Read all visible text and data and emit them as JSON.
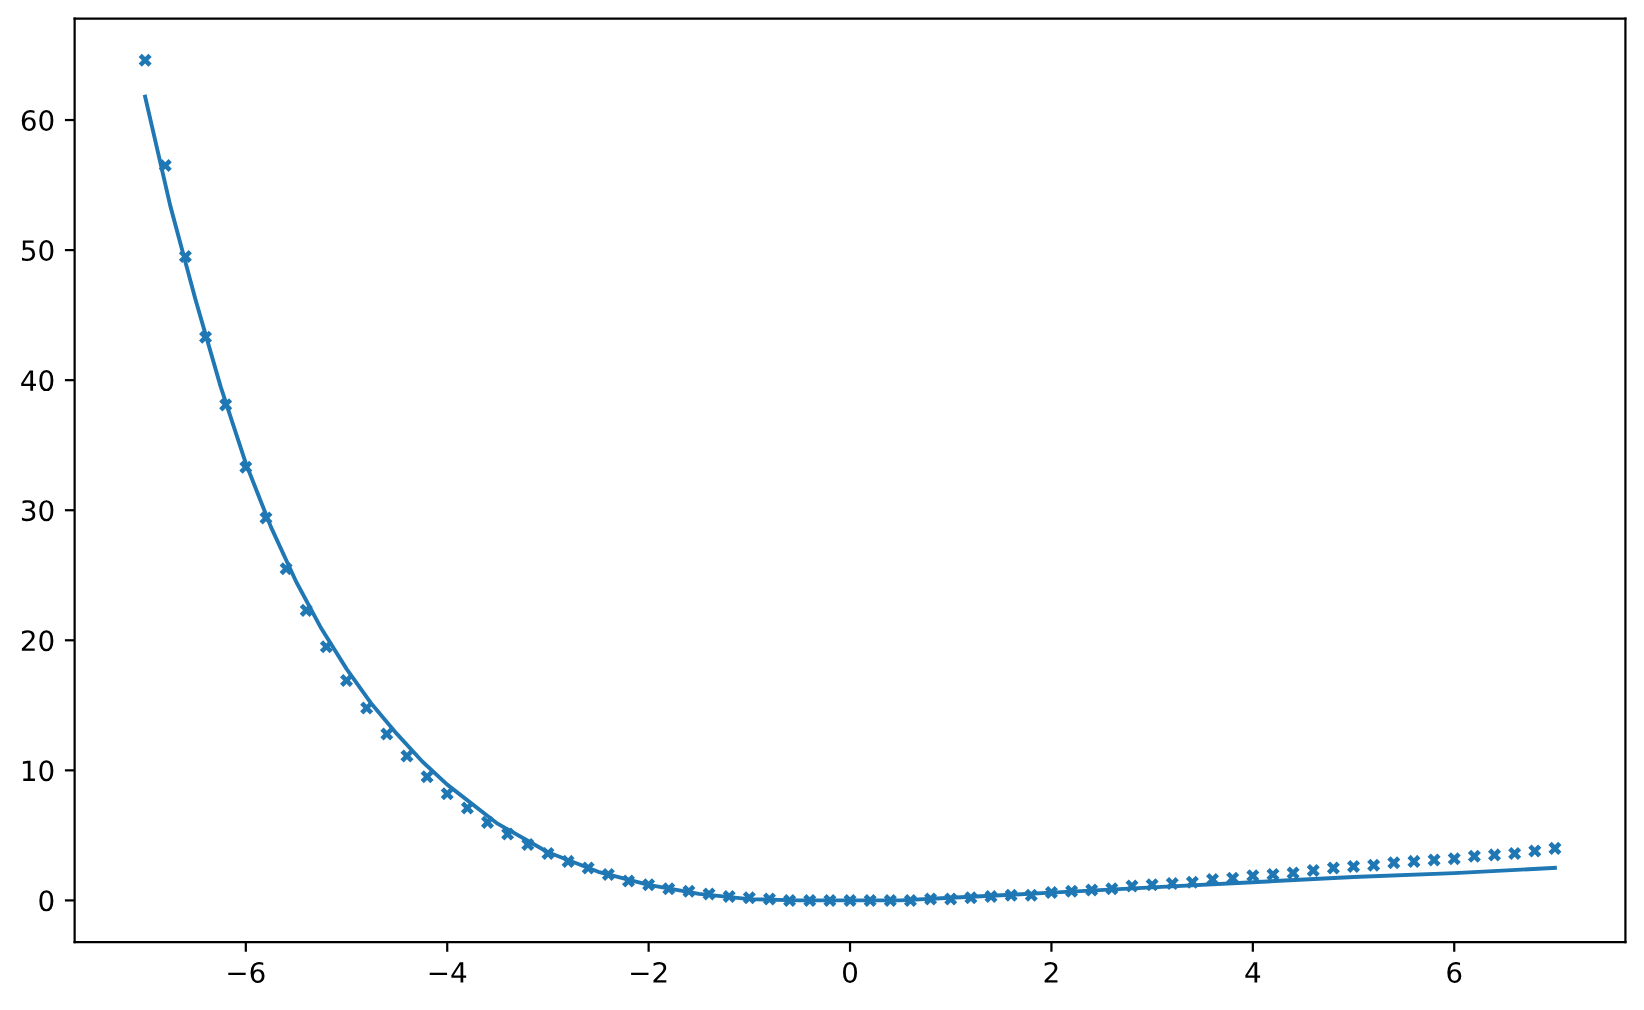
{
  "chart_data": {
    "type": "scatter",
    "xlim": [
      -7.7,
      7.7
    ],
    "ylim": [
      -3.2,
      67.8
    ],
    "xticks": [
      -6,
      -4,
      -2,
      0,
      2,
      4,
      6
    ],
    "yticks": [
      0,
      10,
      20,
      30,
      40,
      50,
      60
    ],
    "series": [
      {
        "color": "#1f77b4",
        "marker": "cross",
        "x": [
          -7.0,
          -6.8,
          -6.6,
          -6.4,
          -6.2,
          -6.0,
          -5.8,
          -5.6,
          -5.4,
          -5.2,
          -5.0,
          -4.8,
          -4.6,
          -4.4,
          -4.2,
          -4.0,
          -3.8,
          -3.6,
          -3.4,
          -3.2,
          -3.0,
          -2.8,
          -2.6,
          -2.4,
          -2.2,
          -2.0,
          -1.8,
          -1.6,
          -1.4,
          -1.2,
          -1.0,
          -0.8,
          -0.6,
          -0.4,
          -0.2,
          0.0,
          0.2,
          0.4,
          0.6,
          0.8,
          1.0,
          1.2,
          1.4,
          1.6,
          1.8,
          2.0,
          2.2,
          2.4,
          2.6,
          2.8,
          3.0,
          3.2,
          3.4,
          3.6,
          3.8,
          4.0,
          4.2,
          4.4,
          4.6,
          4.8,
          5.0,
          5.2,
          5.4,
          5.6,
          5.8,
          6.0,
          6.2,
          6.4,
          6.6,
          6.8,
          7.0
        ],
        "values": [
          64.6,
          56.5,
          49.5,
          43.3,
          38.1,
          33.3,
          29.4,
          25.5,
          22.3,
          19.5,
          16.9,
          14.8,
          12.8,
          11.1,
          9.5,
          8.2,
          7.1,
          6.0,
          5.1,
          4.3,
          3.6,
          3.0,
          2.5,
          2.0,
          1.5,
          1.2,
          0.9,
          0.7,
          0.5,
          0.3,
          0.2,
          0.1,
          0.0,
          0.0,
          0.0,
          0.0,
          0.0,
          0.0,
          0.0,
          0.1,
          0.1,
          0.2,
          0.3,
          0.4,
          0.4,
          0.6,
          0.7,
          0.8,
          0.9,
          1.1,
          1.2,
          1.3,
          1.4,
          1.6,
          1.7,
          1.9,
          2.0,
          2.1,
          2.3,
          2.5,
          2.6,
          2.7,
          2.9,
          3.0,
          3.1,
          3.2,
          3.4,
          3.5,
          3.6,
          3.8,
          4.0
        ]
      },
      {
        "type": "line",
        "color": "#1f77b4",
        "x": [
          -7.0,
          -6.75,
          -6.5,
          -6.25,
          -6.0,
          -5.75,
          -5.5,
          -5.25,
          -5.0,
          -4.75,
          -4.5,
          -4.25,
          -4.0,
          -3.5,
          -3.0,
          -2.5,
          -2.0,
          -1.5,
          -1.0,
          -0.5,
          0.0,
          0.5,
          1.0,
          1.5,
          2.0,
          3.0,
          4.0,
          5.0,
          6.0,
          7.0
        ],
        "values": [
          61.8,
          53.4,
          46.2,
          39.5,
          33.6,
          28.7,
          24.5,
          20.9,
          17.8,
          15.1,
          12.8,
          10.7,
          8.9,
          5.9,
          3.7,
          2.2,
          1.2,
          0.5,
          0.1,
          0.0,
          0.0,
          0.0,
          0.2,
          0.4,
          0.6,
          1.0,
          1.4,
          1.8,
          2.1,
          2.5
        ]
      }
    ]
  }
}
